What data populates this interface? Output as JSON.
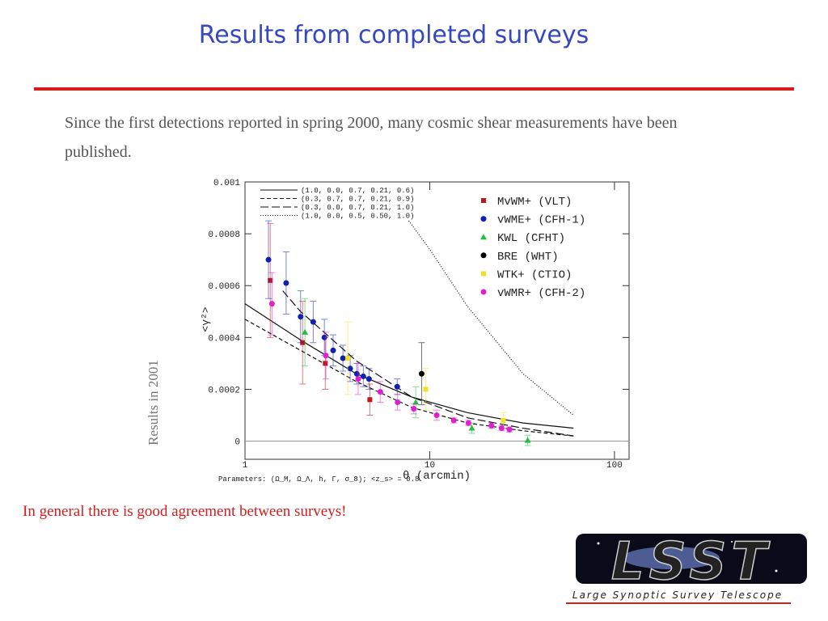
{
  "title": "Results from completed surveys",
  "body": "Since the first detections reported in spring 2000, many cosmic shear measurements have been published.",
  "side_label": "Results in 2001",
  "conclusion": "In general there is good agreement between surveys!",
  "logo": {
    "mark": "LSST",
    "text": "Large Synoptic Survey Telescope"
  },
  "chart_data": {
    "type": "scatter",
    "x_label": "θ (arcmin)",
    "y_label": "<γ²>",
    "footnote": "Parameters: (Ω_M, Ω_Λ, h, Γ, σ_8); <z_s> = 0.8",
    "log_x": true,
    "zero_line": true,
    "xlim": [
      1,
      120
    ],
    "xticks": [
      1,
      10,
      100
    ],
    "ylim": [
      -7e-05,
      0.001
    ],
    "yticks": [
      0.001,
      0.0008,
      0.0006,
      0.0004,
      0.0002,
      0
    ],
    "models": [
      {
        "name": "(1.0, 0.0, 0.7, 0.21, 0.6)",
        "dash": "none",
        "x": [
          1,
          2,
          4,
          8,
          16,
          32,
          60
        ],
        "values": [
          0.00053,
          0.00039,
          0.00026,
          0.00017,
          0.00011,
          7e-05,
          5e-05
        ]
      },
      {
        "name": "(0.3, 0.7, 0.7, 0.21, 0.9)",
        "dash": "5,3",
        "x": [
          1,
          2,
          4,
          8,
          16,
          32,
          60
        ],
        "values": [
          0.00047,
          0.00035,
          0.00023,
          0.00013,
          7e-05,
          4e-05,
          2e-05
        ]
      },
      {
        "name": "(0.3, 0.0, 0.7, 0.21, 1.0)",
        "dash": "10,4",
        "x": [
          1.6,
          2,
          4,
          8,
          16,
          32,
          60
        ],
        "values": [
          0.00058,
          0.0005,
          0.00031,
          0.00017,
          9e-05,
          5e-05,
          2e-05
        ]
      },
      {
        "name": "(1.0, 0.0, 0.5, 0.50, 1.0)",
        "dash": "1,2",
        "x": [
          7.7,
          10,
          16,
          32,
          60
        ],
        "values": [
          0.00085,
          0.00074,
          0.00052,
          0.00026,
          0.0001
        ]
      }
    ],
    "series": [
      {
        "name": "MvWM+ (VLT)",
        "color": "#c0141e",
        "marker": "square",
        "x": [
          1.37,
          2.05,
          2.72,
          4.74
        ],
        "values": [
          0.00062,
          0.00038,
          0.0003,
          0.00016
        ],
        "errors": [
          0.00022,
          0.00016,
          0.0001,
          6e-05
        ]
      },
      {
        "name": "vWME+ (CFH-1)",
        "color": "#1020b0",
        "marker": "circle",
        "x": [
          1.34,
          1.67,
          2.0,
          2.34,
          2.69,
          3.0,
          3.39,
          3.71,
          4.03,
          4.37,
          4.69,
          6.67
        ],
        "values": [
          0.0007,
          0.00061,
          0.00048,
          0.00046,
          0.0004,
          0.00035,
          0.00032,
          0.00028,
          0.00026,
          0.00025,
          0.00024,
          0.00021
        ],
        "errors": [
          0.00015,
          0.00012,
          0.0001,
          8e-05,
          7e-05,
          6e-05,
          5e-05,
          5e-05,
          4e-05,
          4e-05,
          4e-05,
          3e-05
        ]
      },
      {
        "name": "KWL (CFHT)",
        "color": "#20c040",
        "marker": "triangle",
        "x": [
          2.11,
          8.4,
          16.9,
          33.9
        ],
        "values": [
          0.00042,
          0.00015,
          5e-05,
          3e-06
        ],
        "errors": [
          0.00013,
          6e-05,
          2e-05,
          2e-05
        ]
      },
      {
        "name": "BRE (WHT)",
        "color": "#000000",
        "marker": "circle",
        "x": [
          9.04
        ],
        "values": [
          0.00026
        ],
        "errors": [
          0.00012
        ]
      },
      {
        "name": "WTK+ (CTIO)",
        "color": "#f0e020",
        "marker": "square",
        "x": [
          3.6,
          9.5,
          25
        ],
        "values": [
          0.00032,
          0.0002,
          8e-05
        ],
        "errors": [
          0.00014,
          8e-05,
          3e-05
        ]
      },
      {
        "name": "vWMR+ (CFH-2)",
        "color": "#e020d0",
        "marker": "circle",
        "x": [
          1.4,
          2.74,
          4.1,
          5.4,
          6.7,
          8.2,
          10.9,
          13.5,
          16.2,
          21.6,
          24.5,
          27
        ],
        "values": [
          0.00053,
          0.00033,
          0.00024,
          0.00019,
          0.00015,
          0.000125,
          0.0001,
          8e-05,
          7e-05,
          6e-05,
          5e-05,
          4.5e-05
        ],
        "errors": [
          0.00012,
          9e-05,
          6e-05,
          4e-05,
          3e-05,
          2e-05,
          2e-05,
          1e-05,
          1e-05,
          1e-05,
          1e-05,
          1e-05
        ]
      }
    ]
  }
}
